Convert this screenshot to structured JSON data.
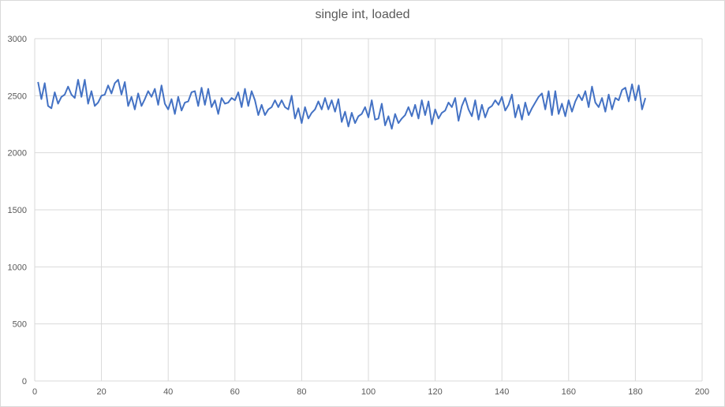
{
  "chart_data": {
    "type": "line",
    "title": "single int, loaded",
    "xlabel": "",
    "ylabel": "",
    "xlim": [
      0,
      200
    ],
    "ylim": [
      0,
      3000
    ],
    "x_ticks": [
      0,
      20,
      40,
      60,
      80,
      100,
      120,
      140,
      160,
      180,
      200
    ],
    "y_ticks": [
      0,
      500,
      1000,
      1500,
      2000,
      2500,
      3000
    ],
    "x_tick_labels": [
      "0",
      "20",
      "40",
      "60",
      "80",
      "100",
      "120",
      "140",
      "160",
      "180",
      "200"
    ],
    "y_tick_labels": [
      "0",
      "500",
      "1000",
      "1500",
      "2000",
      "2500",
      "3000"
    ],
    "grid": true,
    "legend": "none",
    "line_color": "#4472c4",
    "series": [
      {
        "x_start": 1,
        "x_step": 1,
        "values": [
          2620,
          2470,
          2610,
          2410,
          2390,
          2530,
          2430,
          2490,
          2510,
          2580,
          2510,
          2480,
          2640,
          2490,
          2640,
          2430,
          2540,
          2410,
          2440,
          2500,
          2510,
          2590,
          2520,
          2610,
          2640,
          2510,
          2620,
          2410,
          2490,
          2380,
          2520,
          2410,
          2470,
          2540,
          2490,
          2560,
          2420,
          2590,
          2430,
          2380,
          2470,
          2340,
          2490,
          2370,
          2440,
          2450,
          2530,
          2540,
          2410,
          2570,
          2420,
          2560,
          2400,
          2460,
          2340,
          2480,
          2430,
          2440,
          2480,
          2460,
          2530,
          2400,
          2560,
          2410,
          2540,
          2460,
          2330,
          2420,
          2330,
          2380,
          2400,
          2460,
          2400,
          2460,
          2400,
          2380,
          2500,
          2300,
          2390,
          2260,
          2400,
          2300,
          2350,
          2380,
          2450,
          2380,
          2480,
          2380,
          2460,
          2360,
          2470,
          2270,
          2360,
          2230,
          2350,
          2260,
          2320,
          2340,
          2400,
          2310,
          2460,
          2290,
          2300,
          2430,
          2240,
          2320,
          2210,
          2340,
          2260,
          2300,
          2330,
          2400,
          2320,
          2420,
          2300,
          2460,
          2330,
          2450,
          2250,
          2380,
          2300,
          2350,
          2370,
          2440,
          2400,
          2480,
          2280,
          2410,
          2480,
          2380,
          2320,
          2460,
          2290,
          2420,
          2310,
          2390,
          2410,
          2460,
          2420,
          2490,
          2370,
          2420,
          2510,
          2310,
          2420,
          2290,
          2440,
          2330,
          2390,
          2440,
          2490,
          2520,
          2380,
          2540,
          2330,
          2540,
          2340,
          2430,
          2320,
          2460,
          2360,
          2450,
          2510,
          2460,
          2540,
          2400,
          2580,
          2440,
          2400,
          2480,
          2360,
          2510,
          2380,
          2480,
          2460,
          2550,
          2570,
          2450,
          2600,
          2460,
          2590,
          2380,
          2480
        ]
      }
    ]
  }
}
